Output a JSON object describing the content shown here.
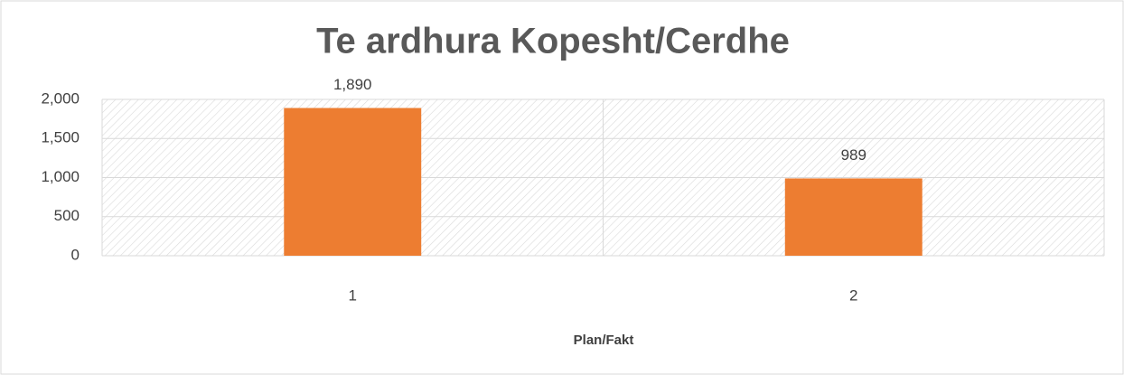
{
  "chart_data": {
    "type": "bar",
    "title": "Te ardhura Kopesht/Cerdhe",
    "categories": [
      "1",
      "2"
    ],
    "values": [
      1890,
      989
    ],
    "value_labels": [
      "1,890",
      "989"
    ],
    "color": "#ed7d31",
    "x_label": "Plan/Fakt",
    "ylim": [
      0,
      2000
    ],
    "yticks": [
      0,
      500,
      {
        "value": 1000,
        "label": "1,000"
      },
      {
        "value": 1500,
        "label": "1,500"
      },
      {
        "value": 2000,
        "label": "2,000"
      }
    ],
    "grid": true
  }
}
